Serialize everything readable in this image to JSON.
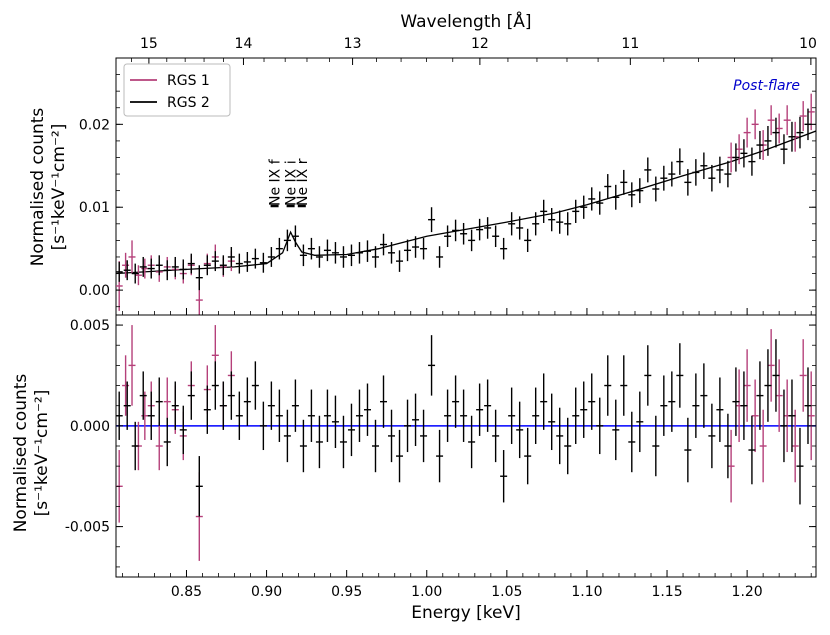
{
  "chart_data": [
    {
      "type": "scatter",
      "panel": "spectrum",
      "title": "",
      "xlabel": "Energy [keV]",
      "ylabel_line1": "Normalised counts",
      "ylabel_line2": "[s⁻¹keV⁻¹cm⁻²]",
      "xlim": [
        0.806,
        1.243
      ],
      "ylim": [
        -0.003,
        0.028
      ],
      "yticks": [
        {
          "value": 0.0,
          "label": "0.00"
        },
        {
          "value": 0.01,
          "label": "0.01"
        },
        {
          "value": 0.02,
          "label": "0.02"
        }
      ],
      "top_axis": {
        "label": "Wavelength [Å]",
        "ticks": [
          {
            "value": 15,
            "label": "15"
          },
          {
            "value": 14,
            "label": "14"
          },
          {
            "value": 13,
            "label": "13"
          },
          {
            "value": 12,
            "label": "12"
          },
          {
            "value": 11,
            "label": "11"
          },
          {
            "value": 10,
            "label": "10"
          }
        ]
      },
      "annotation": "Post-flare",
      "line_labels": [
        {
          "text": "Ne IX f",
          "energy": 0.905
        },
        {
          "text": "Ne IX i",
          "energy": 0.915
        },
        {
          "text": "Ne IX r",
          "energy": 0.922
        }
      ],
      "legend": [
        {
          "name": "RGS 1",
          "color": "#b5407a"
        },
        {
          "name": "RGS 2",
          "color": "#000000"
        }
      ],
      "model": {
        "name": "model",
        "color": "#000000",
        "x": [
          0.806,
          0.85,
          0.88,
          0.9,
          0.91,
          0.915,
          0.918,
          0.922,
          0.93,
          0.95,
          0.97,
          1.0,
          1.05,
          1.08,
          1.1,
          1.13,
          1.16,
          1.19,
          1.21,
          1.243
        ],
        "y": [
          0.002,
          0.0025,
          0.0028,
          0.0032,
          0.0045,
          0.007,
          0.0058,
          0.0046,
          0.0042,
          0.0043,
          0.005,
          0.0065,
          0.0082,
          0.0093,
          0.0103,
          0.012,
          0.0138,
          0.0155,
          0.0168,
          0.0192
        ]
      },
      "series": [
        {
          "name": "RGS 1",
          "color": "#b5407a",
          "x": [
            0.808,
            0.812,
            0.816,
            0.82,
            0.824,
            0.828,
            0.833,
            0.838,
            0.843,
            0.848,
            0.853,
            0.858,
            0.863,
            0.868,
            0.873,
            0.878,
            1.19,
            1.195,
            1.2,
            1.205,
            1.21,
            1.215,
            1.22,
            1.225,
            1.23,
            1.235,
            1.24
          ],
          "y": [
            0.0005,
            0.003,
            0.004,
            0.0018,
            0.0026,
            0.003,
            0.0022,
            0.0028,
            0.0025,
            0.002,
            0.003,
            -0.0012,
            0.0032,
            0.004,
            0.0028,
            0.0035,
            0.016,
            0.017,
            0.019,
            0.02,
            0.0175,
            0.0205,
            0.0195,
            0.0205,
            0.0185,
            0.021,
            0.0215
          ],
          "yerr": [
            0.003,
            0.0015,
            0.002,
            0.0012,
            0.0012,
            0.0012,
            0.0012,
            0.0012,
            0.0012,
            0.0012,
            0.0012,
            0.0025,
            0.0012,
            0.0015,
            0.0012,
            0.0012,
            0.0018,
            0.0018,
            0.0018,
            0.0018,
            0.0018,
            0.0018,
            0.0018,
            0.0018,
            0.0018,
            0.0018,
            0.0022
          ]
        },
        {
          "name": "RGS 2",
          "color": "#000000",
          "x": [
            0.808,
            0.813,
            0.818,
            0.823,
            0.828,
            0.833,
            0.838,
            0.843,
            0.848,
            0.853,
            0.858,
            0.863,
            0.868,
            0.873,
            0.878,
            0.883,
            0.888,
            0.893,
            0.898,
            0.903,
            0.908,
            0.913,
            0.918,
            0.923,
            0.928,
            0.933,
            0.938,
            0.943,
            0.948,
            0.953,
            0.958,
            0.963,
            0.968,
            0.973,
            0.978,
            0.983,
            0.988,
            0.993,
            0.998,
            1.003,
            1.008,
            1.013,
            1.018,
            1.023,
            1.028,
            1.033,
            1.038,
            1.043,
            1.048,
            1.053,
            1.058,
            1.063,
            1.068,
            1.073,
            1.078,
            1.083,
            1.088,
            1.093,
            1.098,
            1.103,
            1.108,
            1.113,
            1.118,
            1.123,
            1.128,
            1.133,
            1.138,
            1.143,
            1.148,
            1.153,
            1.158,
            1.163,
            1.168,
            1.173,
            1.178,
            1.183,
            1.188,
            1.193,
            1.198,
            1.203,
            1.208,
            1.213,
            1.218,
            1.223,
            1.228,
            1.233,
            1.238
          ],
          "y": [
            0.0022,
            0.0024,
            0.002,
            0.0028,
            0.0026,
            0.003,
            0.0024,
            0.0028,
            0.0025,
            0.0032,
            0.0015,
            0.003,
            0.0035,
            0.003,
            0.004,
            0.0032,
            0.0034,
            0.0038,
            0.0033,
            0.004,
            0.005,
            0.006,
            0.0065,
            0.0042,
            0.005,
            0.004,
            0.0048,
            0.0045,
            0.004,
            0.0042,
            0.0045,
            0.0047,
            0.004,
            0.0055,
            0.0045,
            0.0035,
            0.0048,
            0.0052,
            0.005,
            0.0085,
            0.004,
            0.0065,
            0.0072,
            0.0068,
            0.006,
            0.0073,
            0.0075,
            0.0065,
            0.005,
            0.008,
            0.0075,
            0.006,
            0.008,
            0.0095,
            0.0085,
            0.0082,
            0.008,
            0.0095,
            0.01,
            0.011,
            0.0105,
            0.0125,
            0.0112,
            0.013,
            0.0115,
            0.012,
            0.0145,
            0.0122,
            0.0135,
            0.014,
            0.0155,
            0.013,
            0.0142,
            0.015,
            0.0135,
            0.0145,
            0.014,
            0.016,
            0.0165,
            0.0155,
            0.0175,
            0.018,
            0.019,
            0.017,
            0.0185,
            0.019,
            0.02
          ],
          "yerr": [
            0.0012,
            0.0012,
            0.0012,
            0.0012,
            0.0012,
            0.0012,
            0.0012,
            0.0012,
            0.0012,
            0.0012,
            0.0015,
            0.0012,
            0.0012,
            0.0012,
            0.0012,
            0.0012,
            0.0012,
            0.0012,
            0.0012,
            0.0012,
            0.0013,
            0.0013,
            0.0013,
            0.0013,
            0.0013,
            0.0013,
            0.0013,
            0.0013,
            0.0013,
            0.0013,
            0.0013,
            0.0013,
            0.0013,
            0.0013,
            0.0013,
            0.0013,
            0.0013,
            0.0013,
            0.0013,
            0.0015,
            0.0013,
            0.0013,
            0.0013,
            0.0013,
            0.0013,
            0.0013,
            0.0013,
            0.0013,
            0.0013,
            0.0014,
            0.0014,
            0.0014,
            0.0014,
            0.0014,
            0.0014,
            0.0014,
            0.0014,
            0.0014,
            0.0014,
            0.0014,
            0.0014,
            0.0015,
            0.0015,
            0.0015,
            0.0015,
            0.0015,
            0.0015,
            0.0015,
            0.0015,
            0.0015,
            0.0016,
            0.0016,
            0.0016,
            0.0016,
            0.0016,
            0.0016,
            0.0016,
            0.0017,
            0.0017,
            0.0017,
            0.0017,
            0.0018,
            0.0018,
            0.0018,
            0.0018,
            0.0019,
            0.0019
          ]
        }
      ]
    },
    {
      "type": "scatter",
      "panel": "residuals",
      "title": "",
      "xlabel": "Energy [keV]",
      "ylabel_line1": "Normalised counts",
      "ylabel_line2": "[s⁻¹keV⁻¹cm⁻²]",
      "xlim": [
        0.806,
        1.243
      ],
      "ylim": [
        -0.0075,
        0.0055
      ],
      "yticks": [
        {
          "value": 0.005,
          "label": "0.005"
        },
        {
          "value": 0.0,
          "label": "0.000"
        },
        {
          "value": -0.005,
          "label": "-0.005"
        }
      ],
      "xticks": [
        {
          "value": 0.85,
          "label": "0.85"
        },
        {
          "value": 0.9,
          "label": "0.90"
        },
        {
          "value": 0.95,
          "label": "0.95"
        },
        {
          "value": 1.0,
          "label": "1.00"
        },
        {
          "value": 1.05,
          "label": "1.05"
        },
        {
          "value": 1.1,
          "label": "1.10"
        },
        {
          "value": 1.15,
          "label": "1.15"
        },
        {
          "value": 1.2,
          "label": "1.20"
        }
      ],
      "zero_line_color": "#0000ff",
      "series": [
        {
          "name": "RGS 1",
          "color": "#b5407a",
          "x": [
            0.808,
            0.812,
            0.816,
            0.82,
            0.824,
            0.828,
            0.833,
            0.838,
            0.843,
            0.848,
            0.853,
            0.858,
            0.863,
            0.868,
            0.873,
            0.878,
            1.19,
            1.195,
            1.2,
            1.205,
            1.21,
            1.215,
            1.22,
            1.225,
            1.23,
            1.235,
            1.24
          ],
          "y": [
            -0.003,
            0.002,
            0.003,
            -0.001,
            0.0005,
            0.001,
            -0.001,
            0.0012,
            0.0008,
            -0.0005,
            0.002,
            -0.0045,
            0.0018,
            0.0035,
            0.001,
            0.0025,
            -0.002,
            0.001,
            0.002,
            0.0005,
            -0.001,
            0.003,
            0.0015,
            0.0005,
            -0.001,
            0.0025,
            0.0005
          ],
          "yerr": [
            0.0018,
            0.0015,
            0.002,
            0.0012,
            0.0012,
            0.0012,
            0.0012,
            0.0012,
            0.0012,
            0.0012,
            0.0012,
            0.0022,
            0.0012,
            0.0015,
            0.0012,
            0.0012,
            0.0018,
            0.0018,
            0.0018,
            0.0018,
            0.0018,
            0.0018,
            0.0018,
            0.0018,
            0.0018,
            0.0018,
            0.0022
          ]
        },
        {
          "name": "RGS 2",
          "color": "#000000",
          "x": [
            0.808,
            0.813,
            0.818,
            0.823,
            0.828,
            0.833,
            0.838,
            0.843,
            0.848,
            0.853,
            0.858,
            0.863,
            0.868,
            0.873,
            0.878,
            0.883,
            0.888,
            0.893,
            0.898,
            0.903,
            0.908,
            0.913,
            0.918,
            0.923,
            0.928,
            0.933,
            0.938,
            0.943,
            0.948,
            0.953,
            0.958,
            0.963,
            0.968,
            0.973,
            0.978,
            0.983,
            0.988,
            0.993,
            0.998,
            1.003,
            1.008,
            1.013,
            1.018,
            1.023,
            1.028,
            1.033,
            1.038,
            1.043,
            1.048,
            1.053,
            1.058,
            1.063,
            1.068,
            1.073,
            1.078,
            1.083,
            1.088,
            1.093,
            1.098,
            1.103,
            1.108,
            1.113,
            1.118,
            1.123,
            1.128,
            1.133,
            1.138,
            1.143,
            1.148,
            1.153,
            1.158,
            1.163,
            1.168,
            1.173,
            1.178,
            1.183,
            1.188,
            1.193,
            1.198,
            1.203,
            1.208,
            1.213,
            1.218,
            1.223,
            1.228,
            1.233,
            1.238
          ],
          "y": [
            0.0005,
            0.001,
            -0.001,
            0.0015,
            0.0005,
            0.0012,
            -0.0008,
            0.001,
            -0.0002,
            0.0015,
            -0.003,
            0.0008,
            0.002,
            0.001,
            0.0015,
            0.0005,
            0.0012,
            0.002,
            0.0,
            0.001,
            0.0005,
            -0.0005,
            0.001,
            -0.001,
            0.0005,
            -0.0008,
            0.0005,
            0.0002,
            -0.0008,
            -0.0002,
            0.0005,
            0.0008,
            -0.001,
            0.0012,
            -0.0005,
            -0.0015,
            0.0,
            0.0003,
            -0.0005,
            0.003,
            -0.0015,
            0.0005,
            0.0012,
            0.0005,
            -0.0008,
            0.0008,
            0.001,
            -0.0005,
            -0.0025,
            0.0005,
            -0.0002,
            -0.0015,
            0.0005,
            0.0012,
            0.0002,
            -0.0005,
            -0.001,
            0.0005,
            0.0008,
            0.0012,
            0.0,
            0.002,
            -0.0002,
            0.002,
            -0.0008,
            0.0002,
            0.0025,
            -0.001,
            0.001,
            0.0012,
            0.0025,
            -0.0012,
            0.001,
            0.0015,
            -0.0005,
            0.0008,
            -0.001,
            0.0012,
            0.001,
            -0.0012,
            0.0015,
            0.002,
            0.0025,
            0.0,
            0.0005,
            -0.002,
            0.001
          ],
          "yerr": [
            0.0012,
            0.0012,
            0.0012,
            0.0012,
            0.0012,
            0.0012,
            0.0012,
            0.0012,
            0.0012,
            0.0012,
            0.0015,
            0.0012,
            0.0012,
            0.0012,
            0.0012,
            0.0012,
            0.0012,
            0.0012,
            0.0012,
            0.0012,
            0.0013,
            0.0013,
            0.0013,
            0.0013,
            0.0013,
            0.0013,
            0.0013,
            0.0013,
            0.0013,
            0.0013,
            0.0013,
            0.0013,
            0.0013,
            0.0013,
            0.0013,
            0.0013,
            0.0013,
            0.0013,
            0.0013,
            0.0015,
            0.0013,
            0.0013,
            0.0013,
            0.0013,
            0.0013,
            0.0013,
            0.0013,
            0.0013,
            0.0013,
            0.0014,
            0.0014,
            0.0014,
            0.0014,
            0.0014,
            0.0014,
            0.0014,
            0.0014,
            0.0014,
            0.0014,
            0.0014,
            0.0014,
            0.0015,
            0.0015,
            0.0015,
            0.0015,
            0.0015,
            0.0015,
            0.0015,
            0.0015,
            0.0015,
            0.0016,
            0.0016,
            0.0016,
            0.0016,
            0.0016,
            0.0016,
            0.0016,
            0.0017,
            0.0017,
            0.0017,
            0.0017,
            0.0018,
            0.0018,
            0.0018,
            0.0018,
            0.0019,
            0.0019
          ]
        }
      ]
    }
  ]
}
